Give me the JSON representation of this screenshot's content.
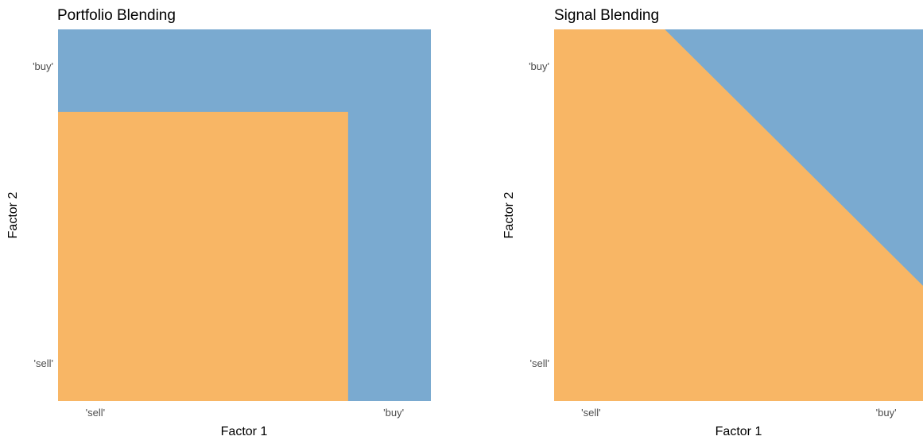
{
  "chart_data": [
    {
      "type": "area",
      "title": "Portfolio Blending",
      "xlabel": "Factor 1",
      "ylabel": "Factor 2",
      "xlim": [
        0,
        1
      ],
      "ylim": [
        0,
        1
      ],
      "x_ticks": [
        {
          "value": 0.1,
          "label": "'sell'"
        },
        {
          "value": 0.9,
          "label": "'buy'"
        }
      ],
      "y_ticks": [
        {
          "value": 0.1,
          "label": "'sell'"
        },
        {
          "value": 0.9,
          "label": "'buy'"
        }
      ],
      "background_color": "#7aaad0",
      "regions": [
        {
          "kind": "rect",
          "color": "#f8b665",
          "x": [
            0,
            0.778
          ],
          "y": [
            0,
            0.778
          ]
        }
      ]
    },
    {
      "type": "area",
      "title": "Signal Blending",
      "xlabel": "Factor 1",
      "ylabel": "Factor 2",
      "xlim": [
        0,
        1
      ],
      "ylim": [
        0,
        1
      ],
      "x_ticks": [
        {
          "value": 0.1,
          "label": "'sell'"
        },
        {
          "value": 0.9,
          "label": "'buy'"
        }
      ],
      "y_ticks": [
        {
          "value": 0.1,
          "label": "'sell'"
        },
        {
          "value": 0.9,
          "label": "'buy'"
        }
      ],
      "background_color": "#7aaad0",
      "regions": [
        {
          "kind": "polygon",
          "color": "#f8b665",
          "points": [
            [
              0,
              0
            ],
            [
              1,
              0
            ],
            [
              1,
              0.31
            ],
            [
              0.3,
              1
            ],
            [
              0,
              1
            ]
          ]
        }
      ]
    }
  ]
}
